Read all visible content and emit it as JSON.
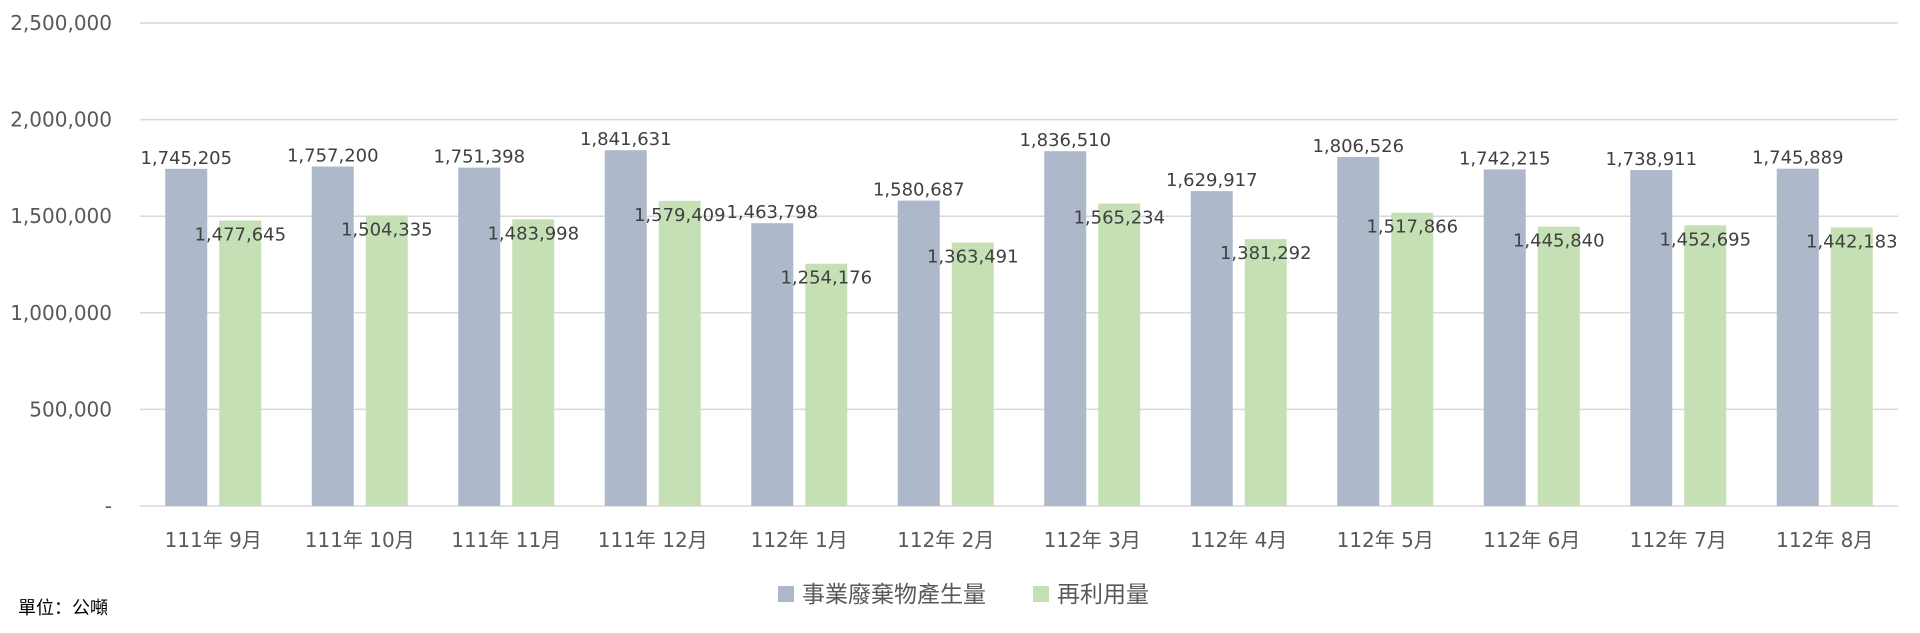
{
  "unit_note": "單位：公噸",
  "colors": {
    "generated": "#adb9ca",
    "reused": "#c5e0b4",
    "grid": "#d9d9d9",
    "text": "#595959"
  },
  "chart_data": {
    "type": "bar",
    "categories": [
      "111年 9月",
      "111年 10月",
      "111年 11月",
      "111年 12月",
      "112年 1月",
      "112年 2月",
      "112年 3月",
      "112年 4月",
      "112年 5月",
      "112年 6月",
      "112年 7月",
      "112年 8月"
    ],
    "series": [
      {
        "name": "事業廢棄物產生量",
        "color": "#adb9ca",
        "values": [
          1745205,
          1757200,
          1751398,
          1841631,
          1463798,
          1580687,
          1836510,
          1629917,
          1806526,
          1742215,
          1738911,
          1745889
        ],
        "labels": [
          "1,745,205",
          "1,757,200",
          "1,751,398",
          "1,841,631",
          "1,463,798",
          "1,580,687",
          "1,836,510",
          "1,629,917",
          "1,806,526",
          "1,742,215",
          "1,738,911",
          "1,745,889"
        ]
      },
      {
        "name": "再利用量",
        "color": "#c5e0b4",
        "values": [
          1477645,
          1504335,
          1483998,
          1579409,
          1254176,
          1363491,
          1565234,
          1381292,
          1517866,
          1445840,
          1452695,
          1442183
        ],
        "labels": [
          "1,477,645",
          "1,504,335",
          "1,483,998",
          "1,579,409",
          "1,254,176",
          "1,363,491",
          "1,565,234",
          "1,381,292",
          "1,517,866",
          "1,445,840",
          "1,452,695",
          "1,442,183"
        ]
      }
    ],
    "ylim": [
      0,
      2500000
    ],
    "yticks": [
      0,
      500000,
      1000000,
      1500000,
      2000000,
      2500000
    ],
    "ytick_labels": [
      "-",
      "500,000",
      "1,000,000",
      "1,500,000",
      "2,000,000",
      "2,500,000"
    ],
    "grid": true,
    "legend": "bottom"
  }
}
